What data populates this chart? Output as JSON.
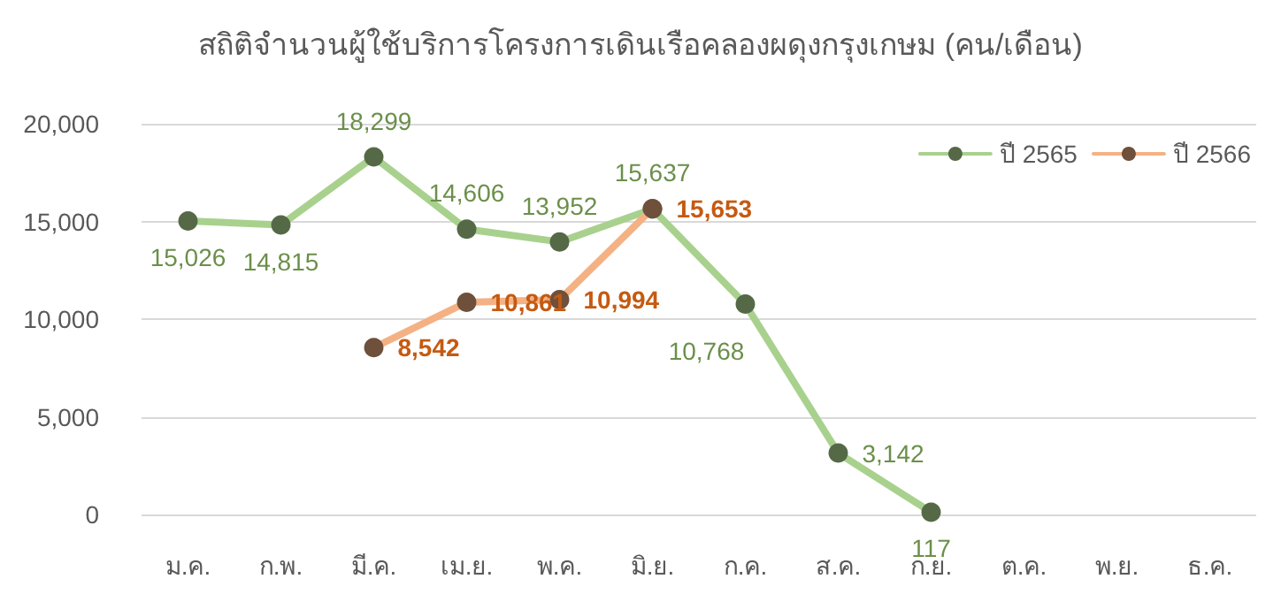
{
  "chart_data": {
    "type": "line",
    "title": "สถิติจำนวนผู้ใช้บริการโครงการเดินเรือคลองผดุงกรุงเกษม (คน/เดือน)",
    "categories": [
      "ม.ค.",
      "ก.พ.",
      "มี.ค.",
      "เม.ย.",
      "พ.ค.",
      "มิ.ย.",
      "ก.ค.",
      "ส.ค.",
      "ก.ย.",
      "ต.ค.",
      "พ.ย.",
      "ธ.ค."
    ],
    "series": [
      {
        "name": "ปี 2565",
        "color": "#a9d18e",
        "values": [
          15026,
          14815,
          18299,
          14606,
          13952,
          15637,
          10768,
          3142,
          117,
          null,
          null,
          null
        ],
        "value_labels": [
          "15,026",
          "14,815",
          "18,299",
          "14,606",
          "13,952",
          "15,637",
          "10,768",
          "3,142",
          "117",
          null,
          null,
          null
        ]
      },
      {
        "name": "ปี 2566",
        "color": "#f4b183",
        "values": [
          null,
          null,
          8542,
          10861,
          10994,
          15653,
          null,
          null,
          null,
          null,
          null,
          null
        ],
        "value_labels": [
          null,
          null,
          "8,542",
          "10,861",
          "10,994",
          "15,653",
          null,
          null,
          null,
          null,
          null,
          null
        ]
      }
    ],
    "ylim": [
      0,
      20000
    ],
    "yticks": [
      0,
      {
        "value": 5000,
        "label": "5,000"
      },
      {
        "value": 10000,
        "label": "10,000"
      },
      {
        "value": 15000,
        "label": "15,000"
      },
      {
        "value": 20000,
        "label": "20,000"
      }
    ],
    "grid": "y",
    "legend": "top right",
    "marker": "circle",
    "line_style": "solid"
  }
}
